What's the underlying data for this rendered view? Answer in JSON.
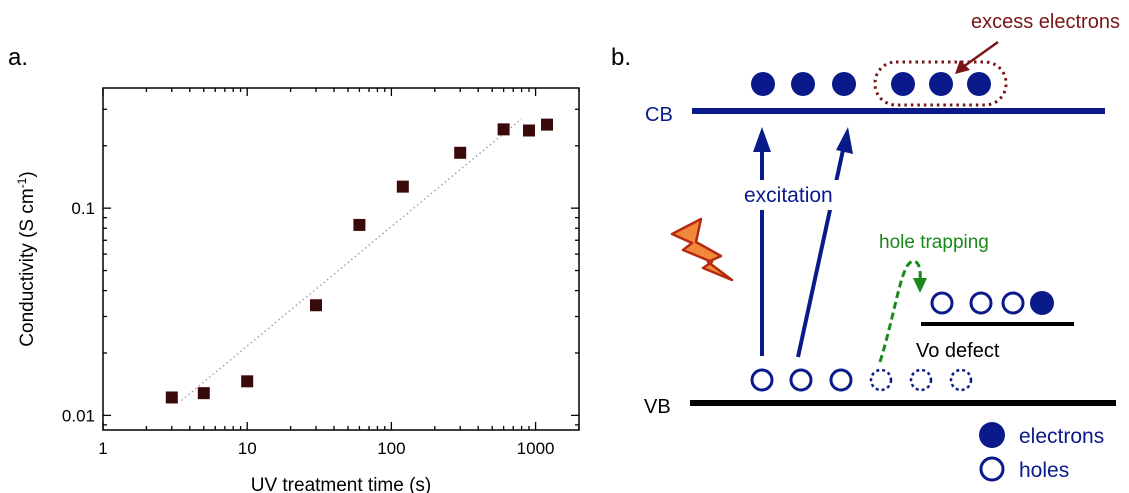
{
  "panel_a": {
    "label": "a.",
    "chart_data": {
      "type": "scatter",
      "xlabel": "UV treatment time (s)",
      "ylabel_parts": [
        "Conductivity (S cm",
        "-1",
        ")"
      ],
      "xscale": "log",
      "yscale": "log",
      "xlim": [
        1,
        2000
      ],
      "ylim": [
        0.0085,
        0.38
      ],
      "xticks": [
        {
          "v": 1,
          "label": "1"
        },
        {
          "v": 10,
          "label": "10"
        },
        {
          "v": 100,
          "label": "100"
        },
        {
          "v": 1000,
          "label": "1000"
        }
      ],
      "yticks": [
        {
          "v": 0.01,
          "label": "0.01"
        },
        {
          "v": 0.1,
          "label": "0.1"
        }
      ],
      "x": [
        3,
        5,
        10,
        30,
        60,
        120,
        300,
        600,
        900,
        1200
      ],
      "y": [
        0.0122,
        0.0128,
        0.0146,
        0.034,
        0.083,
        0.127,
        0.185,
        0.24,
        0.237,
        0.253
      ],
      "fit_x": [
        3.5,
        800
      ],
      "fit_y": [
        0.0118,
        0.27
      ],
      "marker_color": "#3a0a0a",
      "fit_color": "#999999",
      "fit_style": "dotted"
    }
  },
  "panel_b": {
    "label": "b.",
    "cb_label": "CB",
    "vb_label": "VB",
    "excess_label": "excess electrons",
    "excitation_label": "excitation",
    "trapping_label": "hole trapping",
    "defect_label": "Vo defect",
    "legend_electrons": "electrons",
    "legend_holes": "holes",
    "colors": {
      "blue": "#0a1a8a",
      "excess": "#7a1515",
      "trap": "#1a8a1a",
      "black": "#000000",
      "bolt_fill": "#f08a3a",
      "bolt_stroke": "#b52a10"
    }
  }
}
